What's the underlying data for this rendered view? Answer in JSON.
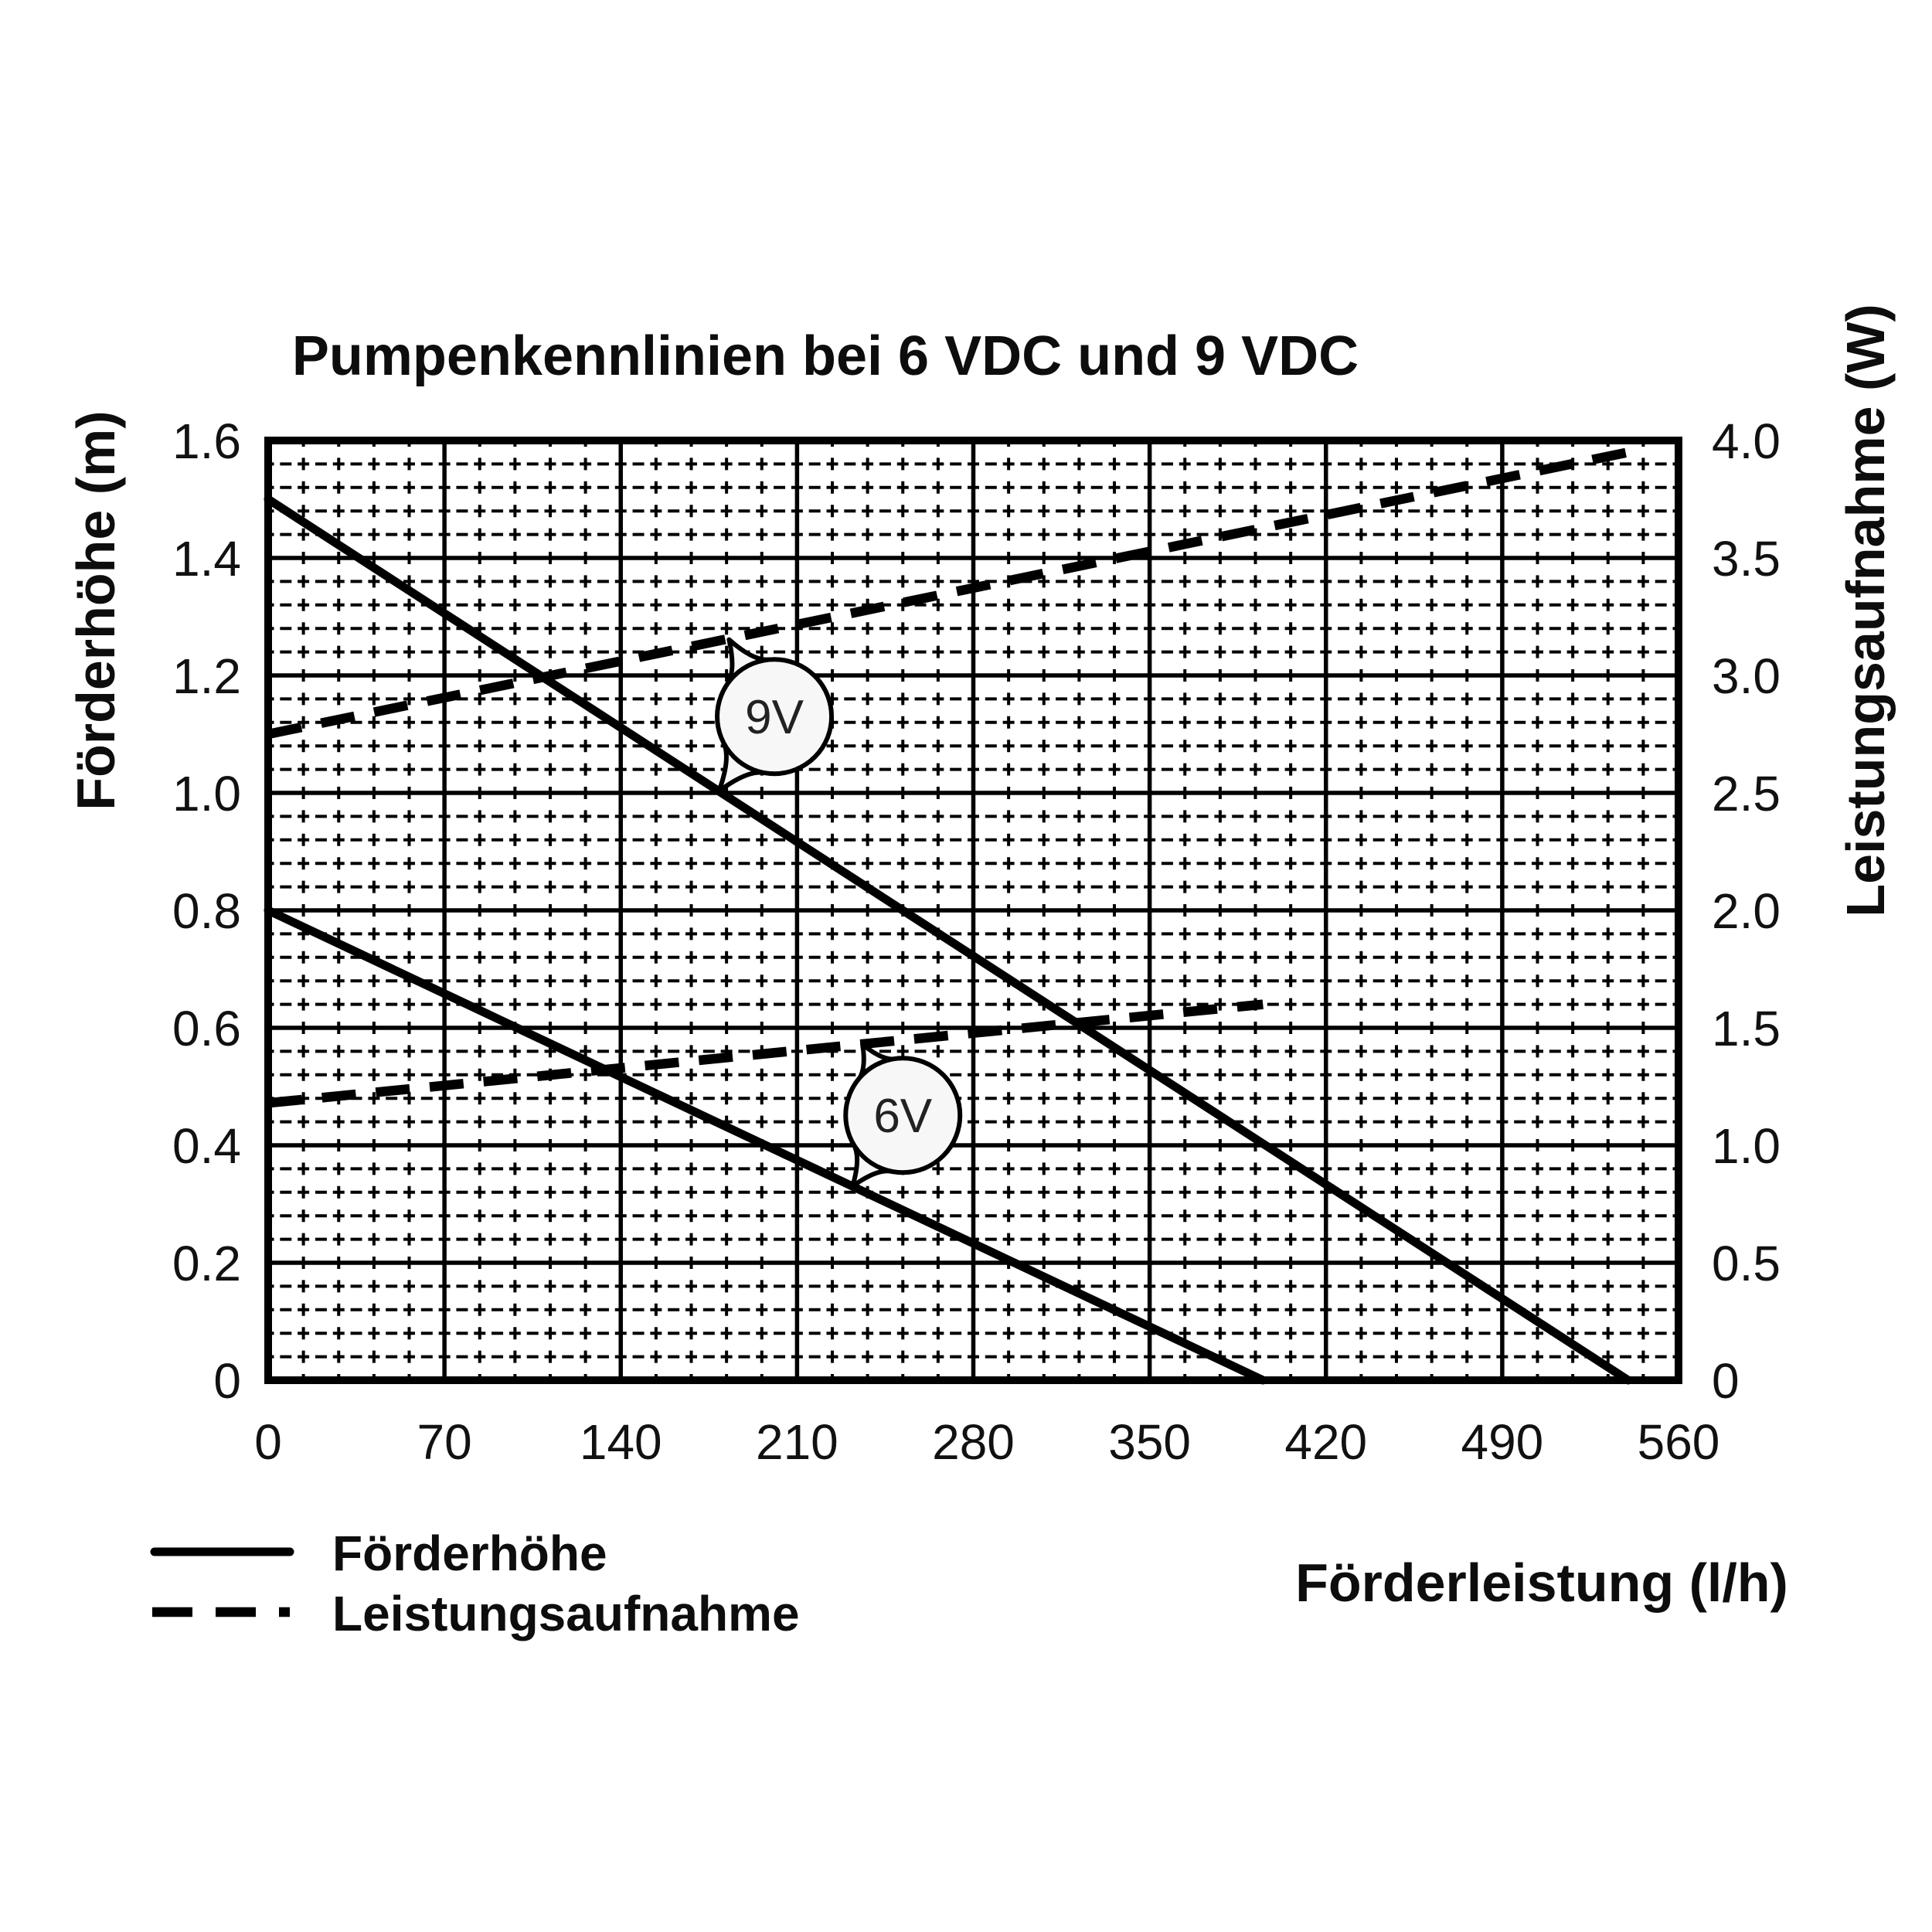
{
  "title": "Pumpenkennlinien bei 6 VDC und 9 VDC",
  "chart_data": {
    "type": "line",
    "title": "Pumpenkennlinien bei 6 VDC und 9 VDC",
    "x_axis": {
      "label": "Förderleistung (l/h)",
      "min": 0,
      "max": 560,
      "tick_values": [
        0,
        70,
        140,
        210,
        280,
        350,
        420,
        490,
        560
      ],
      "tick_labels": [
        "0",
        "70",
        "140",
        "210",
        "280",
        "350",
        "420",
        "490",
        "560"
      ],
      "minor_step": 14
    },
    "y_left": {
      "label": "Förderhöhe (m)",
      "min": 0,
      "max": 1.6,
      "tick_values": [
        0,
        0.2,
        0.4,
        0.6,
        0.8,
        1.0,
        1.2,
        1.4,
        1.6
      ],
      "tick_labels": [
        "0",
        "0.2",
        "0.4",
        "0.6",
        "0.8",
        "1.0",
        "1.2",
        "1.4",
        "1.6"
      ],
      "minor_step": 0.04
    },
    "y_right": {
      "label": "Leistungsaufnahme (W)",
      "min": 0,
      "max": 4.0,
      "tick_values": [
        0,
        0.5,
        1.0,
        1.5,
        2.0,
        2.5,
        3.0,
        3.5,
        4.0
      ],
      "tick_labels": [
        "0",
        "0.5",
        "1.0",
        "1.5",
        "2.0",
        "2.5",
        "3.0",
        "3.5",
        "4.0"
      ],
      "minor_step": 0.1
    },
    "grid": "major solid, minor dashed mesh",
    "legend_position": "bottom-left",
    "series": [
      {
        "name": "Förderhöhe 9V",
        "voltage": "9V",
        "style": "solid",
        "axis": "left",
        "unit": "m",
        "points": [
          [
            0,
            1.5
          ],
          [
            540,
            0
          ]
        ]
      },
      {
        "name": "Förderhöhe 6V",
        "voltage": "6V",
        "style": "solid",
        "axis": "left",
        "unit": "m",
        "points": [
          [
            0,
            0.8
          ],
          [
            395,
            0
          ]
        ]
      },
      {
        "name": "Leistungsaufnahme 9V",
        "voltage": "9V",
        "style": "dashed",
        "axis": "right",
        "unit": "W",
        "points": [
          [
            0,
            2.75
          ],
          [
            540,
            3.95
          ]
        ]
      },
      {
        "name": "Leistungsaufnahme 6V",
        "voltage": "6V",
        "style": "dashed",
        "axis": "right",
        "unit": "W",
        "points": [
          [
            0,
            1.18
          ],
          [
            395,
            1.6
          ]
        ]
      }
    ],
    "annotations": [
      {
        "label": "9V",
        "x": 201,
        "y_left": 1.13,
        "tails": [
          {
            "x": 183,
            "y_left": 1.261
          },
          {
            "x": 179,
            "y_left": 1.003
          }
        ]
      },
      {
        "label": "6V",
        "x": 252,
        "y_left": 0.451,
        "tails": [
          {
            "x": 236,
            "y_left": 0.572
          },
          {
            "x": 232,
            "y_left": 0.33
          }
        ]
      }
    ],
    "legend": [
      {
        "style": "solid",
        "label": "Förderhöhe"
      },
      {
        "style": "dashed",
        "label": "Leistungsaufnahme"
      }
    ]
  }
}
